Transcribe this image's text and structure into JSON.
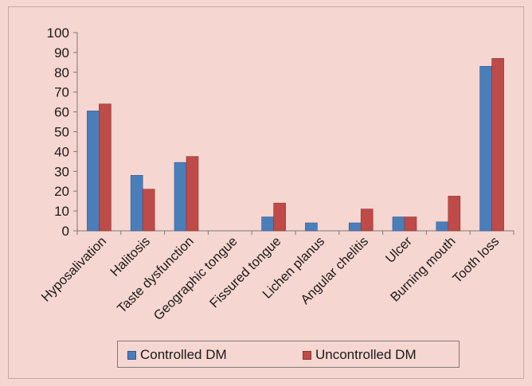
{
  "chart_data": {
    "type": "bar",
    "categories": [
      "Hyposalivation",
      "Halitosis",
      "Taste dysfunction",
      "Geographic tongue",
      "Fissured tongue",
      "Lichen planus",
      "Angular chelitis",
      "Ulcer",
      "Burning mouth",
      "Tooth loss"
    ],
    "series": [
      {
        "name": "Controlled DM",
        "values": [
          60.5,
          28,
          34.5,
          0,
          7,
          4,
          4,
          7,
          4.5,
          83
        ],
        "color": "#4a7ebb"
      },
      {
        "name": "Uncontrolled DM",
        "values": [
          64,
          21,
          37.5,
          0,
          14,
          0,
          11,
          7,
          17.5,
          87
        ],
        "color": "#be4b48"
      }
    ],
    "ylim": [
      0,
      100
    ],
    "yticks": [
      "0",
      "10",
      "20",
      "30",
      "40",
      "50",
      "60",
      "70",
      "80",
      "90",
      "100"
    ],
    "grid": false,
    "legend_position": "bottom"
  },
  "colors": {
    "background": "#f6d6d0",
    "axis": "#7a7a7a"
  }
}
